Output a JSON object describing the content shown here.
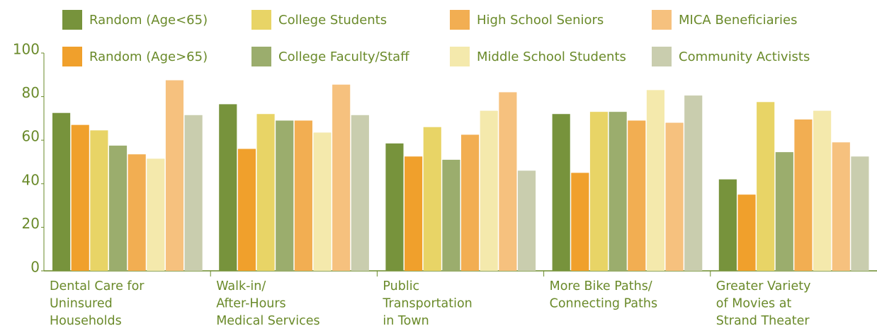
{
  "chart_data": {
    "type": "bar",
    "categories": [
      "Dental Care for\nUninsured\nHouseholds",
      "Walk-in/\nAfter-Hours\nMedical Services",
      "Public\nTransportation\nin Town",
      "More Bike Paths/\nConnecting Paths",
      "Greater Variety\nof Movies at\nStrand Theater"
    ],
    "series": [
      {
        "name": "Random (Age<65)",
        "color": "#77933c",
        "values": [
          72.5,
          76.5,
          58.5,
          72,
          42
        ]
      },
      {
        "name": "Random (Age>65)",
        "color": "#f0a02c",
        "values": [
          67,
          56,
          52.5,
          45,
          35
        ]
      },
      {
        "name": "College Students",
        "color": "#e8d466",
        "values": [
          64.5,
          72,
          66,
          73,
          77.5
        ]
      },
      {
        "name": "College Faculty/Staff",
        "color": "#9bad6d",
        "values": [
          57.5,
          69,
          51,
          73,
          54.5
        ]
      },
      {
        "name": "High School Seniors",
        "color": "#f2ae52",
        "values": [
          53.5,
          69,
          62.5,
          69,
          69.5
        ]
      },
      {
        "name": "Middle School Students",
        "color": "#f4e9ac",
        "values": [
          51.5,
          63.5,
          73.5,
          83,
          73.5
        ]
      },
      {
        "name": "MICA Beneficiaries",
        "color": "#f6c17e",
        "values": [
          87.5,
          85.5,
          82,
          68,
          59
        ]
      },
      {
        "name": "Community Activists",
        "color": "#c9cdae",
        "values": [
          71.5,
          71.5,
          46,
          80.5,
          52.5
        ]
      }
    ],
    "ylim": [
      0,
      100
    ],
    "yticks": [
      0,
      20,
      40,
      60,
      80,
      100
    ],
    "grid": false
  }
}
